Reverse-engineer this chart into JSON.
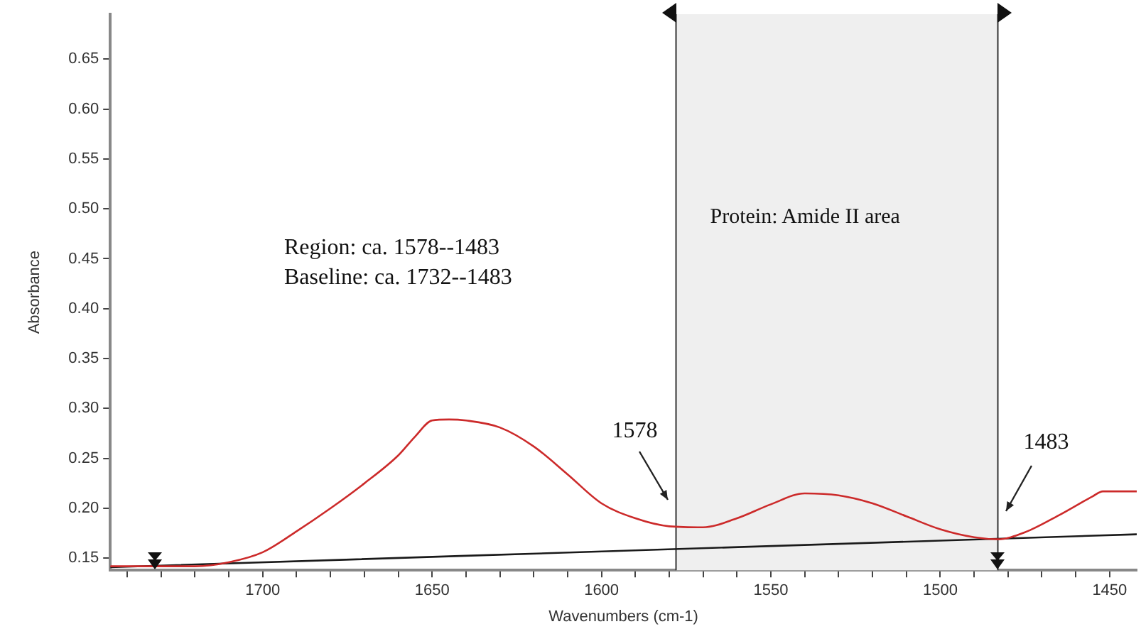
{
  "chart_data": {
    "type": "line",
    "xlabel": "Wavenumbers (cm-1)",
    "ylabel": "Absorbance",
    "xlim": [
      1745,
      1442
    ],
    "ylim": [
      0.138,
      0.695
    ],
    "xticks": [
      {
        "value": 1740,
        "label": null
      },
      {
        "value": 1730,
        "label": null
      },
      {
        "value": 1720,
        "label": null
      },
      {
        "value": 1710,
        "label": null
      },
      1700,
      {
        "value": 1690,
        "label": null
      },
      {
        "value": 1680,
        "label": null
      },
      {
        "value": 1670,
        "label": null
      },
      {
        "value": 1660,
        "label": null
      },
      1650,
      {
        "value": 1640,
        "label": null
      },
      {
        "value": 1630,
        "label": null
      },
      {
        "value": 1620,
        "label": null
      },
      {
        "value": 1610,
        "label": null
      },
      1600,
      {
        "value": 1590,
        "label": null
      },
      {
        "value": 1580,
        "label": null
      },
      {
        "value": 1570,
        "label": null
      },
      {
        "value": 1560,
        "label": null
      },
      1550,
      {
        "value": 1540,
        "label": null
      },
      {
        "value": 1530,
        "label": null
      },
      {
        "value": 1520,
        "label": null
      },
      {
        "value": 1510,
        "label": null
      },
      1500,
      {
        "value": 1490,
        "label": null
      },
      {
        "value": 1480,
        "label": null
      },
      {
        "value": 1470,
        "label": null
      },
      {
        "value": 1460,
        "label": null
      },
      1450
    ],
    "yticks": [
      0.15,
      {
        "value": 0.2,
        "label": "0.20"
      },
      0.25,
      {
        "value": 0.3,
        "label": "0.30"
      },
      0.35,
      {
        "value": 0.4,
        "label": "0.40"
      },
      0.45,
      {
        "value": 0.5,
        "label": "0.50"
      },
      0.55,
      {
        "value": 0.6,
        "label": "0.60"
      },
      0.65
    ],
    "grid": false,
    "legend": false,
    "marker": "none",
    "series": [
      {
        "color": "#cc2a2a",
        "x": [
          1745,
          1720,
          1710,
          1700,
          1690,
          1680,
          1670,
          1660,
          1655,
          1650,
          1645,
          1640,
          1630,
          1620,
          1610,
          1600,
          1590,
          1580,
          1570,
          1560,
          1550,
          1540,
          1530,
          1520,
          1510,
          1500,
          1490,
          1483,
          1475,
          1465,
          1455,
          1452,
          1442
        ],
        "values": [
          0.142,
          0.142,
          0.146,
          0.156,
          0.177,
          0.2,
          0.225,
          0.253,
          0.272,
          0.288,
          0.289,
          0.288,
          0.281,
          0.262,
          0.234,
          0.205,
          0.19,
          0.182,
          0.181,
          0.19,
          0.204,
          0.215,
          0.213,
          0.205,
          0.192,
          0.179,
          0.171,
          0.169,
          0.176,
          0.193,
          0.212,
          0.217,
          0.217
        ]
      },
      {
        "color": "#1a1a1a",
        "x": [
          1745,
          1442
        ],
        "values": [
          0.141,
          0.174
        ]
      }
    ],
    "bands": [
      {
        "axis": "x",
        "from": 1578,
        "to": 1483,
        "label": "Protein: Amide II area",
        "color": "#efefef"
      }
    ],
    "ref_lines": [
      {
        "axis": "x",
        "value": 1578,
        "color": "#333333"
      },
      {
        "axis": "x",
        "value": 1483,
        "color": "#333333"
      }
    ],
    "annotations": [
      "Region: ca. 1578--1483",
      "Baseline: ca. 1732--1483",
      "1578",
      "1483"
    ]
  }
}
